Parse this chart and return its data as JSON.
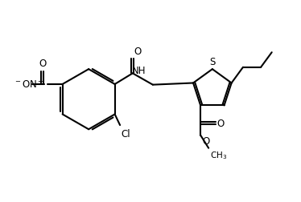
{
  "bg_color": "#ffffff",
  "line_color": "#000000",
  "line_width": 1.5,
  "font_size": 8.5,
  "figsize": [
    3.74,
    2.53
  ],
  "dpi": 100,
  "xlim": [
    0,
    10
  ],
  "ylim": [
    0,
    7
  ]
}
